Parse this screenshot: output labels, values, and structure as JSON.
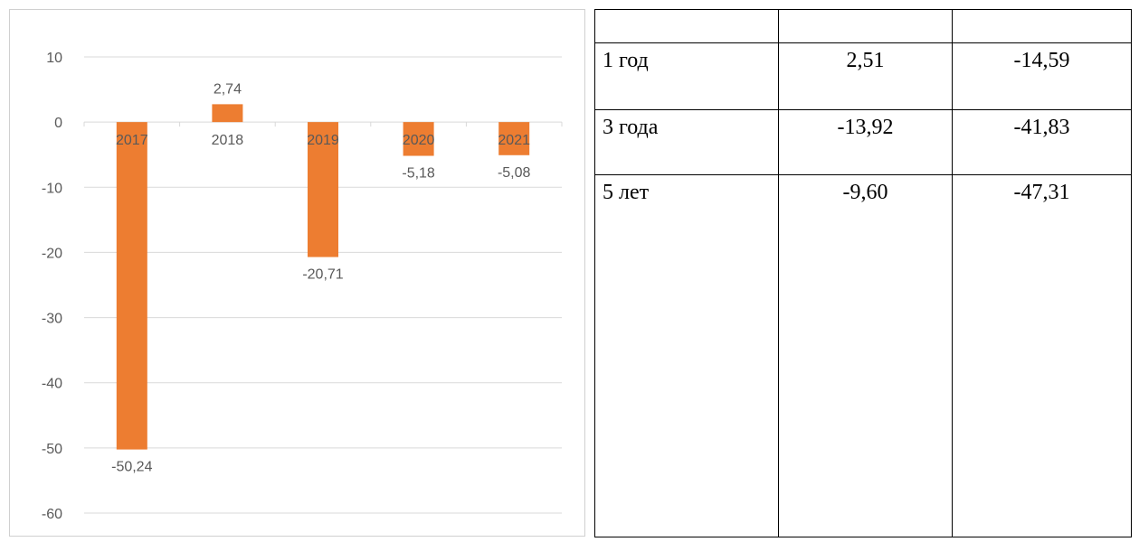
{
  "chart_data": {
    "type": "bar",
    "categories": [
      "2017",
      "2018",
      "2019",
      "2020",
      "2021"
    ],
    "values": [
      -50.24,
      2.74,
      -20.71,
      -5.18,
      -5.08
    ],
    "data_labels": [
      "-50,24",
      "2,74",
      "-20,71",
      "-5,18",
      "-5,08"
    ],
    "y_ticks": [
      10,
      0,
      -10,
      -20,
      -30,
      -40,
      -50,
      -60
    ],
    "ylim": [
      -60,
      10
    ],
    "bar_color": "#ED7D31",
    "grid": true,
    "title": "",
    "xlabel": "",
    "ylabel": ""
  },
  "table": {
    "rows": [
      [
        "",
        "",
        ""
      ],
      [
        "1 год",
        "2,51",
        "-14,59"
      ],
      [
        "3 года",
        "-13,92",
        "-41,83"
      ],
      [
        "5 лет",
        "-9,60",
        "-47,31"
      ]
    ]
  }
}
